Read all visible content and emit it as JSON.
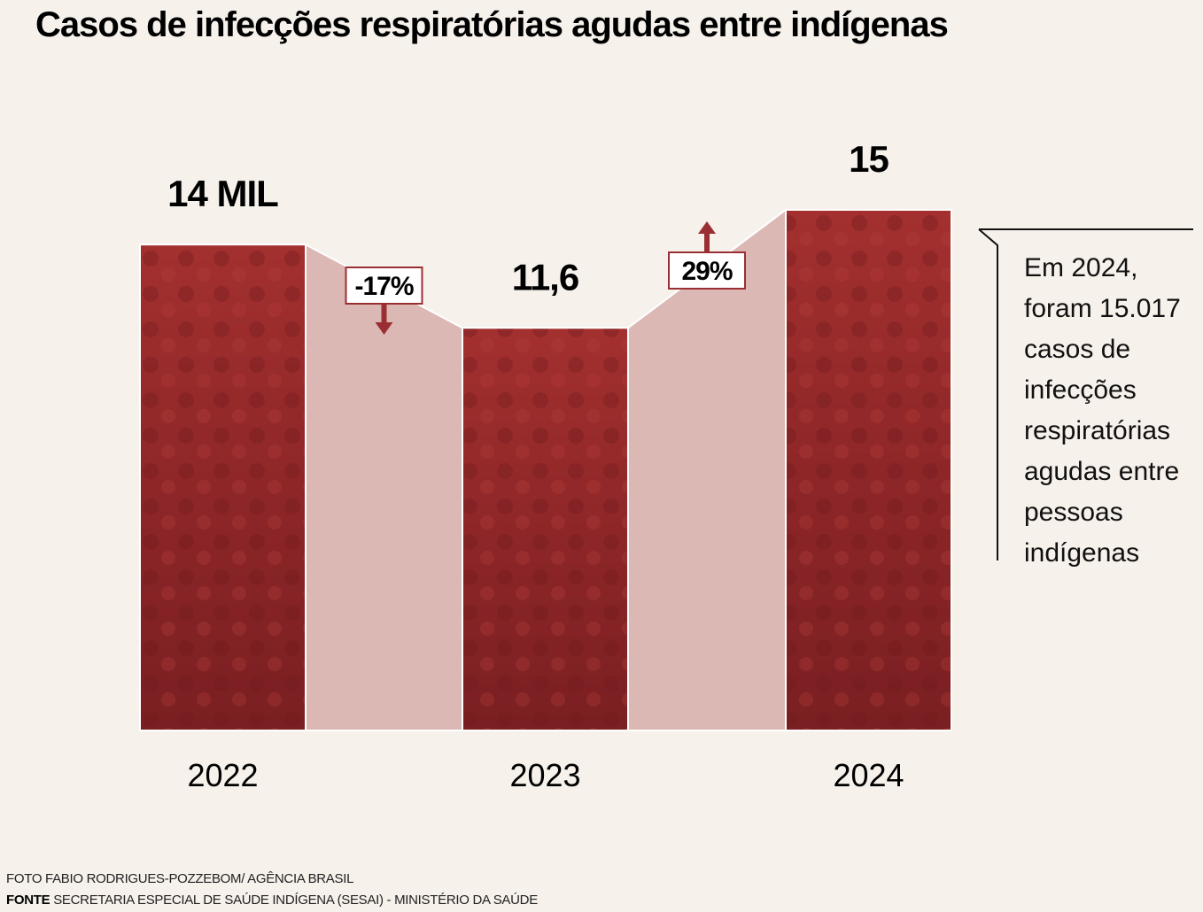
{
  "title": "Casos de infecções respiratórias agudas entre indígenas",
  "chart_data": {
    "type": "bar",
    "categories": [
      "2022",
      "2023",
      "2024"
    ],
    "values": [
      14,
      11.6,
      15
    ],
    "value_labels": [
      "14 MIL",
      "11,6",
      "15"
    ],
    "unit": "mil",
    "changes": [
      {
        "label": "-17%",
        "direction": "down"
      },
      {
        "label": "29%",
        "direction": "up"
      }
    ],
    "ylim": [
      0,
      15
    ],
    "grid": false,
    "colors": {
      "bar": "#9a2a2c",
      "connector": "#dcb8b4",
      "arrow": "#9a2f33",
      "background": "#f6f1eb"
    }
  },
  "annotation": [
    "Em 2024,",
    "foram 15.017",
    "casos de",
    "infecções",
    "respiratórias",
    "agudas entre",
    "pessoas",
    "indígenas"
  ],
  "credits": {
    "photo": "FOTO FABIO RODRIGUES-POZZEBOM/ AGÊNCIA BRASIL",
    "source_label": "FONTE",
    "source": "SECRETARIA ESPECIAL DE SAÚDE INDÍGENA (SESAI) - MINISTÉRIO DA SAÚDE"
  }
}
